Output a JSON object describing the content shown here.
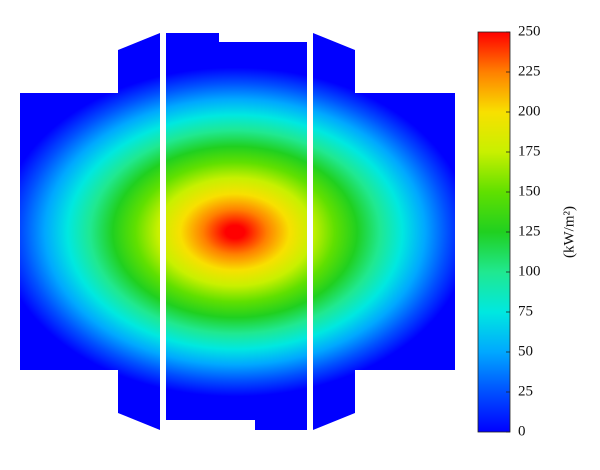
{
  "chart_data": {
    "type": "heatmap",
    "colorbar_label": "(kW/m²)",
    "clim": [
      0,
      250
    ],
    "cticks": [
      0,
      25,
      50,
      75,
      100,
      125,
      150,
      175,
      200,
      225,
      250
    ],
    "colormap": [
      "#0000ff",
      "#0050ff",
      "#00a8ff",
      "#00e8e0",
      "#20e890",
      "#20d020",
      "#60e000",
      "#c8f000",
      "#f8e000",
      "#ff8000",
      "#ff0000"
    ]
  }
}
